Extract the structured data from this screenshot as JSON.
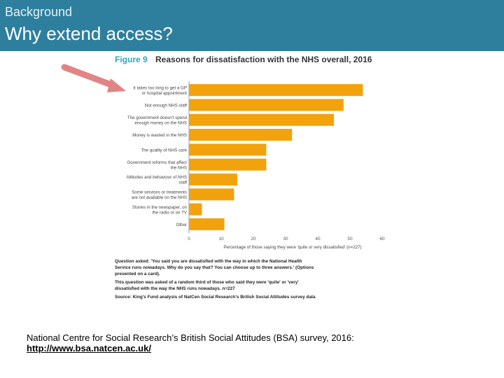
{
  "header": {
    "kicker": "Background",
    "title": "Why extend access?"
  },
  "colors": {
    "header_bg": "#2e7f9e",
    "bar": "#f2a20c",
    "figure_label": "#2aa6c8",
    "figure_title": "#333333",
    "arrow": "#e08585"
  },
  "chart_data": {
    "type": "bar",
    "orientation": "horizontal",
    "figure_label": "Figure 9",
    "title": "Reasons for dissatisfaction with the NHS overall, 2016",
    "categories": [
      "It takes too long to get a GP or hospital appointment",
      "Not enough NHS staff",
      "The government doesn't spend enough money on the NHS",
      "Money is wasted in the NHS",
      "The quality of NHS care",
      "Government reforms that affect the NHS",
      "Attitudes and behaviour of NHS staff",
      "Some services or treatments are not available on the NHS",
      "Stories in the newspaper, on the radio or on TV",
      "Other"
    ],
    "values": [
      54,
      48,
      45,
      32,
      24,
      24,
      15,
      14,
      4,
      11
    ],
    "xlim": [
      0,
      60
    ],
    "xticks": [
      "0",
      "10",
      "20",
      "30",
      "40",
      "50",
      "60"
    ],
    "xlabel": "Percentage of those saying they were 'quite or very dissatisfied' (n=227)",
    "notes": [
      "Question asked: 'You said you are dissatisfied with the way in which the National Health Service runs nowadays. Why do you say that? You can choose up to three answers.' (Options presented on a card).",
      "This question was asked of a random third of those who said they were 'quite' or 'very' dissatisfied with the way the NHS runs nowadays. n=227",
      "Source: King's Fund analysis of NatCen Social Research's British Social Attitudes survey data"
    ],
    "grid": false
  },
  "footer": {
    "caption": "National Centre for Social Research’s British Social Attitudes (BSA) survey, 2016:",
    "link": "http://www.bsa.natcen.ac.uk/"
  }
}
